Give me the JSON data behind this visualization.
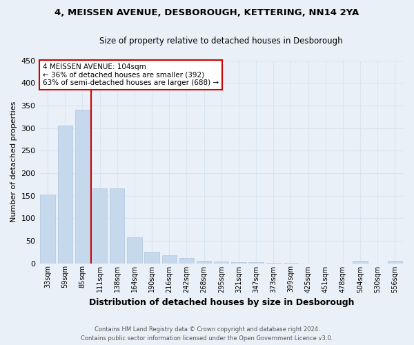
{
  "title1": "4, MEISSEN AVENUE, DESBOROUGH, KETTERING, NN14 2YA",
  "title2": "Size of property relative to detached houses in Desborough",
  "xlabel": "Distribution of detached houses by size in Desborough",
  "ylabel": "Number of detached properties",
  "bar_color": "#c5d8ec",
  "bar_edge_color": "#aec6de",
  "grid_color": "#d8e6f2",
  "background_color": "#eaf0f8",
  "fig_background": "#eaf0f8",
  "property_label": "4 MEISSEN AVENUE: 104sqm",
  "annotation_line1": "← 36% of detached houses are smaller (392)",
  "annotation_line2": "63% of semi-detached houses are larger (688) →",
  "vline_color": "#cc0000",
  "categories": [
    "33sqm",
    "59sqm",
    "85sqm",
    "111sqm",
    "138sqm",
    "164sqm",
    "190sqm",
    "216sqm",
    "242sqm",
    "268sqm",
    "295sqm",
    "321sqm",
    "347sqm",
    "373sqm",
    "399sqm",
    "425sqm",
    "451sqm",
    "478sqm",
    "504sqm",
    "530sqm",
    "556sqm"
  ],
  "values": [
    153,
    305,
    340,
    166,
    166,
    57,
    25,
    18,
    12,
    5,
    4,
    3,
    2,
    1,
    1,
    0,
    0,
    0,
    5,
    0,
    5
  ],
  "ylim": [
    0,
    450
  ],
  "yticks": [
    0,
    50,
    100,
    150,
    200,
    250,
    300,
    350,
    400,
    450
  ],
  "footer_line1": "Contains HM Land Registry data © Crown copyright and database right 2024.",
  "footer_line2": "Contains public sector information licensed under the Open Government Licence v3.0."
}
